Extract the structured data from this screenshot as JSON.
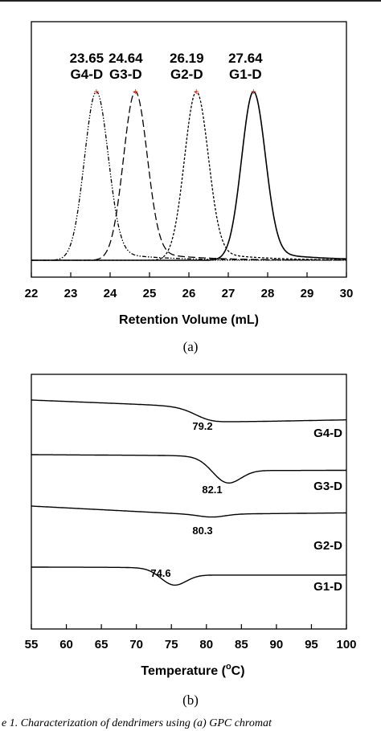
{
  "chart_data": [
    {
      "type": "line",
      "panel_label": "(a)",
      "xlabel": "Retention Volume (mL)",
      "ylabel": "",
      "xlim": [
        22,
        30
      ],
      "x_ticks": [
        "22",
        "23",
        "24",
        "25",
        "26",
        "27",
        "28",
        "29",
        "30"
      ],
      "grid": false,
      "peaks": [
        {
          "value": "23.65",
          "name": "G4-D"
        },
        {
          "value": "24.64",
          "name": "G3-D"
        },
        {
          "value": "26.19",
          "name": "G2-D"
        },
        {
          "value": "27.64",
          "name": "G1-D"
        }
      ],
      "series": [
        {
          "name": "G4-D",
          "peak_x": 23.65,
          "line_style": "dash-dot-dot"
        },
        {
          "name": "G3-D",
          "peak_x": 24.64,
          "line_style": "long-dash"
        },
        {
          "name": "G2-D",
          "peak_x": 26.19,
          "line_style": "short-dash"
        },
        {
          "name": "G1-D",
          "peak_x": 27.64,
          "line_style": "solid"
        }
      ],
      "peak_marker_color": "#e8341c"
    },
    {
      "type": "line",
      "panel_label": "(b)",
      "xlabel_main": "Temperature (",
      "xlabel_sup": "o",
      "xlabel_unit": "C)",
      "ylabel": "",
      "xlim": [
        55,
        100
      ],
      "x_ticks": [
        "55",
        "60",
        "65",
        "70",
        "75",
        "80",
        "85",
        "90",
        "95",
        "100"
      ],
      "grid": false,
      "series": [
        {
          "name": "G4-D",
          "tg": "79.2"
        },
        {
          "name": "G3-D",
          "tg": "82.1"
        },
        {
          "name": "G2-D",
          "tg": "80.3"
        },
        {
          "name": "G1-D",
          "tg": "74.6"
        }
      ]
    }
  ],
  "caption": "e 1.  Characterization of dendrimers using (a) GPC chromat"
}
